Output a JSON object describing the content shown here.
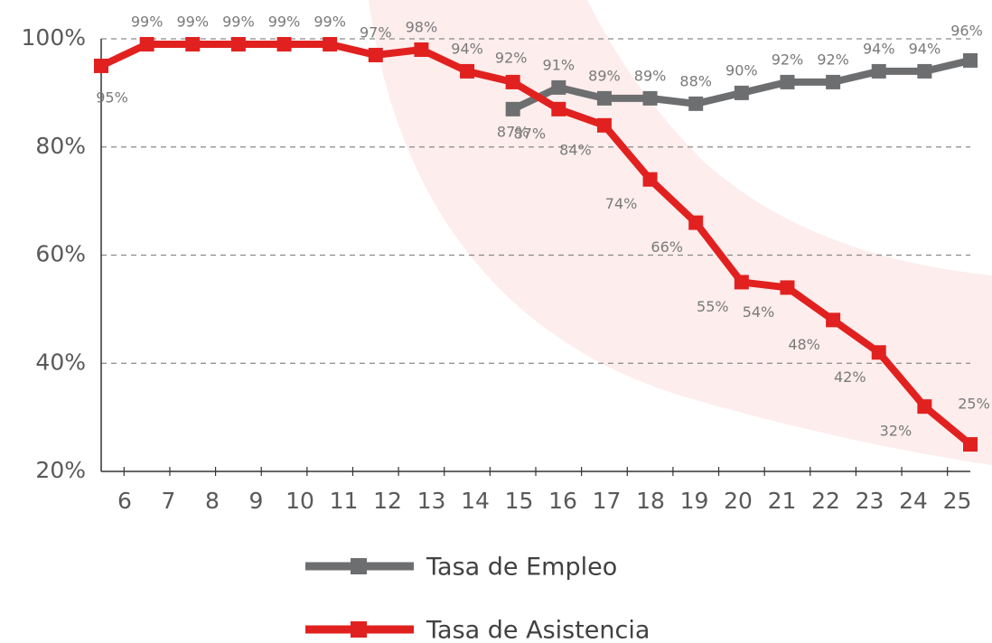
{
  "chart_data": {
    "type": "line",
    "categories": [
      "6",
      "7",
      "8",
      "9",
      "10",
      "11",
      "12",
      "13",
      "14",
      "15",
      "16",
      "17",
      "18",
      "19",
      "20",
      "21",
      "22",
      "23",
      "24",
      "25"
    ],
    "series": [
      {
        "name": "Tasa de Empleo",
        "color": "#6d6e70",
        "values": [
          null,
          null,
          null,
          null,
          null,
          null,
          null,
          null,
          null,
          87,
          91,
          89,
          89,
          88,
          90,
          92,
          92,
          94,
          94,
          96
        ],
        "value_labels": [
          null,
          null,
          null,
          null,
          null,
          null,
          null,
          null,
          null,
          "87%",
          "91%",
          "89%",
          "89%",
          "88%",
          "90%",
          "92%",
          "92%",
          "94%",
          "94%",
          "96%"
        ]
      },
      {
        "name": "Tasa de Asistencia",
        "color": "#e1211f",
        "values": [
          95,
          99,
          99,
          99,
          99,
          99,
          97,
          98,
          94,
          92,
          87,
          84,
          74,
          66,
          55,
          54,
          48,
          42,
          32,
          25
        ],
        "value_labels": [
          "95%",
          "99%",
          "99%",
          "99%",
          "99%",
          "99%",
          "97%",
          "98%",
          "94%",
          "92%",
          "87%",
          "84%",
          "74%",
          "66%",
          "55%",
          "54%",
          "48%",
          "42%",
          "32%",
          "25%"
        ]
      }
    ],
    "ylim": [
      20,
      100
    ],
    "yticks": [
      {
        "value": 20,
        "label": "20%"
      },
      {
        "value": 40,
        "label": "40%"
      },
      {
        "value": 60,
        "label": "60%"
      },
      {
        "value": 80,
        "label": "80%"
      },
      {
        "value": 100,
        "label": "100%"
      }
    ],
    "grid": true
  }
}
